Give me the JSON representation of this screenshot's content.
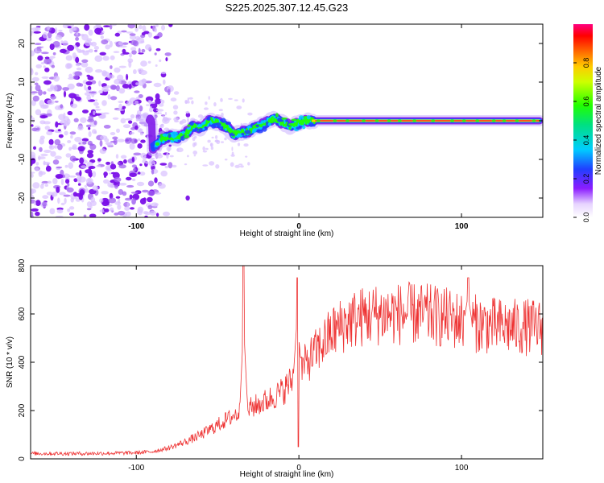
{
  "page_title": "S225.2025.307.12.45.G23",
  "chart_data": [
    {
      "type": "heatmap",
      "title": "S225.2025.307.12.45.G23",
      "xlabel": "Height of straight line (km)",
      "ylabel": "Frequency (Hz)",
      "xlim": [
        -165,
        150
      ],
      "ylim": [
        -25,
        25
      ],
      "xticks": [
        -100,
        0,
        100
      ],
      "xtick_labels": [
        "-100",
        "0",
        "100"
      ],
      "yticks": [
        -20,
        -10,
        0,
        10,
        20
      ],
      "ytick_labels": [
        "-20",
        "-10",
        "0",
        "10",
        "20"
      ],
      "colorbar": {
        "label": "Normalized spectral amplitude",
        "range": [
          0,
          1
        ],
        "ticks": [
          0.0,
          0.2,
          0.4,
          0.6,
          0.8
        ],
        "tick_labels": [
          "0.0",
          "0.2",
          "0.4",
          "0.6",
          "0.8"
        ]
      },
      "ridge": {
        "description": "peak frequency vs height",
        "x": [
          -90,
          -85,
          -80,
          -75,
          -70,
          -65,
          -60,
          -55,
          -50,
          -45,
          -40,
          -35,
          -30,
          -25,
          -20,
          -15,
          -10,
          -5,
          0,
          5,
          10,
          150
        ],
        "y": [
          -7,
          -5,
          -4,
          -4.5,
          -3.5,
          -1.5,
          -2,
          0,
          -0.5,
          -1.5,
          -3.5,
          -3,
          -2.5,
          -1.5,
          -0.5,
          0.5,
          -0.5,
          -1.5,
          -0.5,
          0,
          0,
          0
        ]
      },
      "noise_region_x": [
        -165,
        -80
      ]
    },
    {
      "type": "line",
      "xlabel": "Height of straight line (km)",
      "ylabel": "SNR (10 * v/v)",
      "xlim": [
        -165,
        150
      ],
      "ylim": [
        0,
        800
      ],
      "xticks": [
        -100,
        0,
        100
      ],
      "xtick_labels": [
        "-100",
        "0",
        "100"
      ],
      "yticks": [
        0,
        200,
        400,
        600,
        800
      ],
      "ytick_labels": [
        "0",
        "200",
        "400",
        "600",
        "800"
      ],
      "series": [
        {
          "name": "SNR",
          "color": "#ee3333",
          "trend_x": [
            -165,
            -130,
            -100,
            -90,
            -80,
            -70,
            -60,
            -50,
            -40,
            -30,
            -20,
            -10,
            0,
            10,
            20,
            30,
            40,
            50,
            60,
            70,
            80,
            90,
            100,
            110,
            120,
            130,
            140,
            150
          ],
          "trend_y": [
            22,
            22,
            25,
            30,
            45,
            70,
            100,
            140,
            180,
            210,
            240,
            280,
            360,
            440,
            520,
            570,
            590,
            600,
            600,
            600,
            595,
            585,
            570,
            560,
            550,
            545,
            545,
            545
          ],
          "spikes": [
            {
              "x": -34,
              "y": 800
            },
            {
              "x": -1,
              "y": 750
            },
            {
              "x": 104,
              "y": 750
            }
          ],
          "dips": [
            {
              "x": -1,
              "y": 50
            }
          ]
        }
      ]
    }
  ],
  "colors": {
    "snr_line": "#ee3333",
    "ridge_peak": "#ff2a2a",
    "noise": "#8a2be2"
  }
}
